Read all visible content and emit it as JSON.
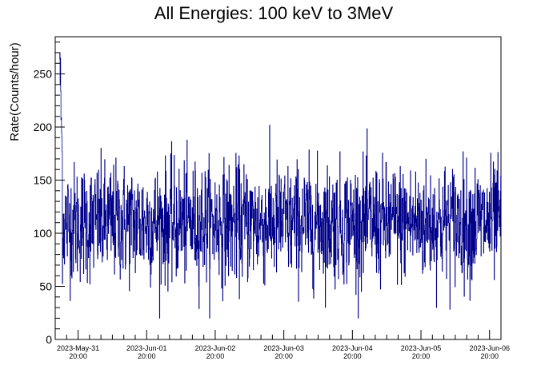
{
  "chart_data": {
    "type": "line",
    "title": "All Energies:  100 keV to 3MeV",
    "ylabel": "Rate(Counts/hour)",
    "xlabel": "",
    "ylim": [
      0,
      285
    ],
    "xlim": [
      "2023-May-31 12:00",
      "2023-Jun-06 24:00"
    ],
    "yticks": [
      0,
      50,
      100,
      150,
      200,
      250
    ],
    "xticks": [
      {
        "date": "2023-May-31",
        "time": "20:00",
        "hour": 8
      },
      {
        "date": "2023-Jun-01",
        "time": "20:00",
        "hour": 32
      },
      {
        "date": "2023-Jun-02",
        "time": "20:00",
        "hour": 56
      },
      {
        "date": "2023-Jun-03",
        "time": "20:00",
        "hour": 80
      },
      {
        "date": "2023-Jun-04",
        "time": "20:00",
        "hour": 104
      },
      {
        "date": "2023-Jun-05",
        "time": "20:00",
        "hour": 128
      },
      {
        "date": "2023-Jun-06",
        "time": "20:00",
        "hour": 152
      }
    ],
    "series": [
      {
        "color": "#00008b",
        "start": "2023-May-31 13:30",
        "interval_hours": 0.1,
        "initial_peak": {
          "rate": 270,
          "duration_hours": 1.0
        },
        "approx_mean": 110,
        "approx_range": [
          20,
          270
        ]
      }
    ],
    "grid": false,
    "legend": "none"
  }
}
